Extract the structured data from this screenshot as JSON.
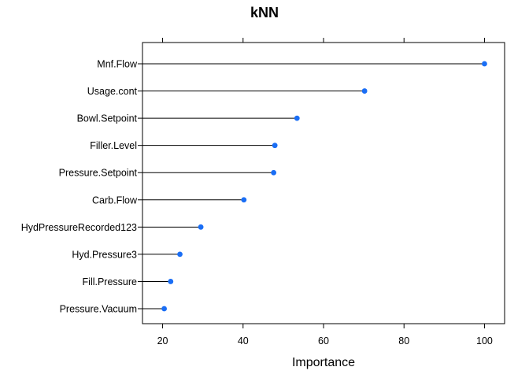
{
  "chart_data": {
    "type": "dot",
    "title": "kNN",
    "xlabel": "Importance",
    "ylabel": "",
    "xlim": [
      15,
      105
    ],
    "xticks": [
      20,
      40,
      60,
      80,
      100
    ],
    "marker_color": "#1a6ef5",
    "categories": [
      "Mnf.Flow",
      "Usage.cont",
      "Bowl.Setpoint",
      "Filler.Level",
      "Pressure.Setpoint",
      "Carb.Flow",
      "HydPressureRecorded123",
      "Hyd.Pressure3",
      "Fill.Pressure",
      "Pressure.Vacuum"
    ],
    "values": [
      100,
      70.2,
      53.4,
      47.9,
      47.6,
      40.2,
      29.5,
      24.3,
      22.0,
      20.4
    ]
  }
}
